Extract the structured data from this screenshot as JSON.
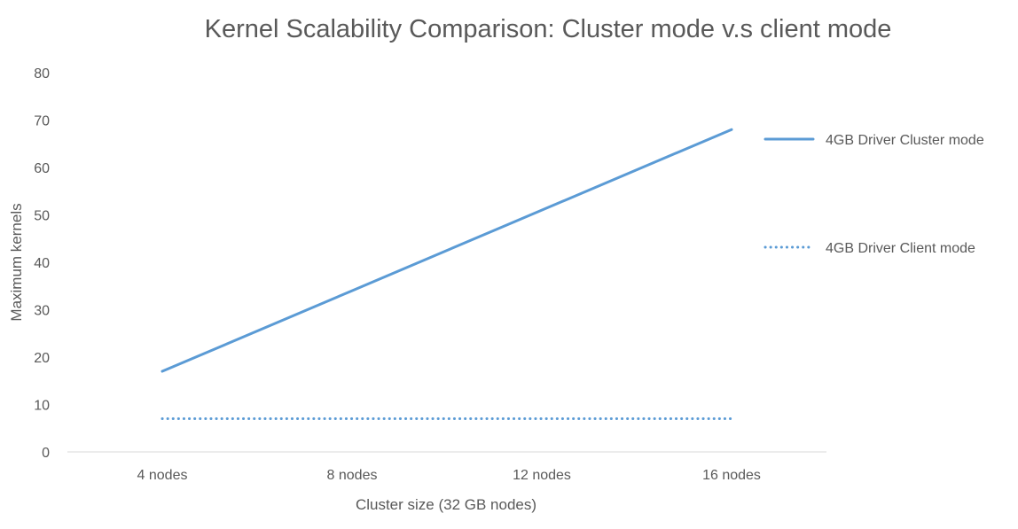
{
  "chart_data": {
    "type": "line",
    "title": "Kernel Scalability Comparison: Cluster mode v.s client mode",
    "xlabel": "Cluster size (32 GB nodes)",
    "ylabel": "Maximum kernels",
    "categories": [
      "4 nodes",
      "8 nodes",
      "12 nodes",
      "16 nodes"
    ],
    "ylim": [
      0,
      80
    ],
    "yticks": [
      0,
      10,
      20,
      30,
      40,
      50,
      60,
      70,
      80
    ],
    "grid": false,
    "legend_placement": "right",
    "series": [
      {
        "name": "4GB Driver Cluster mode",
        "values": [
          17,
          34,
          51,
          68
        ],
        "color": "#5b9bd5",
        "style": "solid"
      },
      {
        "name": "4GB Driver Client mode",
        "values": [
          7,
          7,
          7,
          7
        ],
        "color": "#5b9bd5",
        "style": "dotted"
      }
    ]
  }
}
